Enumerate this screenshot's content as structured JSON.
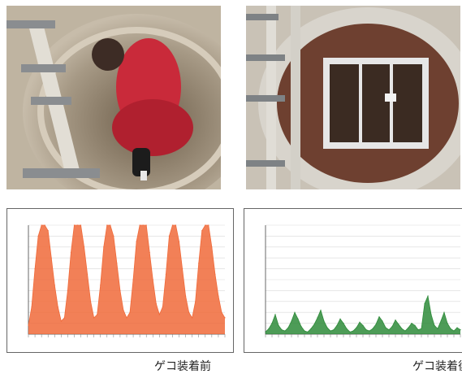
{
  "captions": {
    "before": "ゲコ装着前",
    "after": "ゲコ装着後"
  },
  "photos": {
    "left": "worker-in-manhole-photo",
    "right": "manhole-with-grate-photo"
  },
  "chart_data": [
    {
      "type": "area",
      "title": "",
      "xlabel": "",
      "ylabel": "",
      "ylim": [
        0,
        100
      ],
      "color": "#f06a3a",
      "x": [
        0,
        1,
        2,
        3,
        4,
        5,
        6,
        7,
        8,
        9,
        10,
        11,
        12,
        13,
        14,
        15,
        16,
        17,
        18,
        19,
        20,
        21,
        22,
        23,
        24,
        25,
        26,
        27,
        28,
        29,
        30,
        31,
        32,
        33,
        34,
        35,
        36,
        37,
        38,
        39,
        40,
        41,
        42,
        43,
        44,
        45,
        46,
        47,
        48,
        49,
        50,
        51,
        52,
        53,
        54,
        55,
        56,
        57,
        58,
        59,
        60
      ],
      "values": [
        8,
        25,
        60,
        90,
        100,
        100,
        95,
        70,
        45,
        25,
        12,
        15,
        40,
        75,
        100,
        100,
        100,
        80,
        55,
        30,
        15,
        18,
        45,
        80,
        100,
        100,
        90,
        65,
        40,
        22,
        15,
        20,
        50,
        85,
        100,
        100,
        100,
        75,
        50,
        28,
        18,
        25,
        55,
        90,
        100,
        100,
        85,
        60,
        35,
        20,
        15,
        30,
        65,
        95,
        100,
        100,
        80,
        55,
        35,
        20,
        15
      ]
    },
    {
      "type": "area",
      "title": "",
      "xlabel": "",
      "ylabel": "",
      "ylim": [
        0,
        100
      ],
      "color": "#2e8b3a",
      "x": [
        0,
        1,
        2,
        3,
        4,
        5,
        6,
        7,
        8,
        9,
        10,
        11,
        12,
        13,
        14,
        15,
        16,
        17,
        18,
        19,
        20,
        21,
        22,
        23,
        24,
        25,
        26,
        27,
        28,
        29,
        30,
        31,
        32,
        33,
        34,
        35,
        36,
        37,
        38,
        39,
        40,
        41,
        42,
        43,
        44,
        45,
        46,
        47,
        48,
        49,
        50,
        51,
        52,
        53,
        54,
        55,
        56,
        57,
        58,
        59,
        60
      ],
      "values": [
        2,
        5,
        10,
        18,
        8,
        4,
        3,
        6,
        12,
        20,
        14,
        7,
        3,
        2,
        5,
        9,
        15,
        22,
        12,
        6,
        3,
        4,
        8,
        14,
        10,
        5,
        2,
        3,
        6,
        11,
        8,
        4,
        3,
        5,
        9,
        16,
        12,
        6,
        4,
        7,
        13,
        9,
        5,
        3,
        6,
        10,
        8,
        4,
        5,
        28,
        35,
        18,
        8,
        5,
        12,
        20,
        10,
        5,
        3,
        6,
        4
      ]
    }
  ]
}
